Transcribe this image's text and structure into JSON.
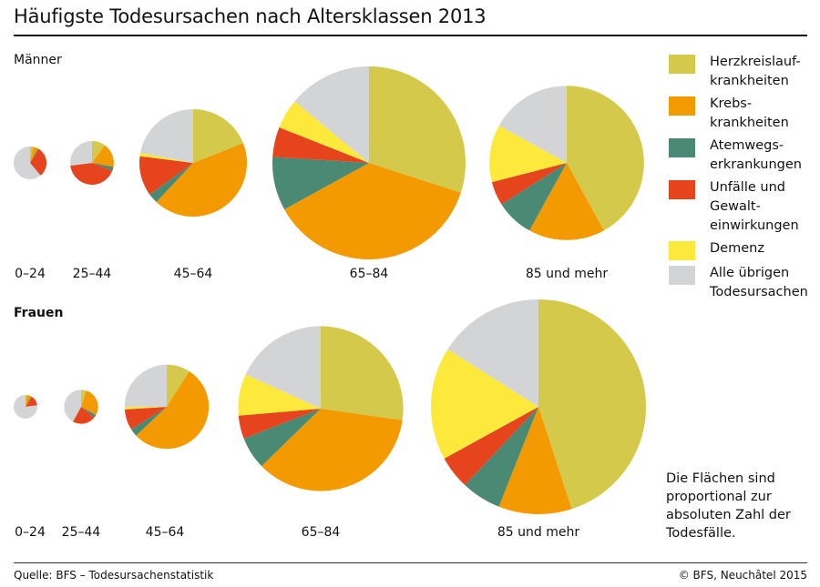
{
  "title": "Häufigste Todesursachen nach Altersklassen 2013",
  "note": "Die Flächen sind\nproportional zur\nabsoluten Zahl der\nTodesfälle.",
  "source": "Quelle: BFS – Todesursachenstatistik",
  "copyright": "© BFS, Neuchâtel 2015",
  "legend": [
    {
      "label": "Herzkreislauf-\nkrankheiten",
      "color": "#d4c94a"
    },
    {
      "label": "Krebs-\nkrankheiten",
      "color": "#f39a00"
    },
    {
      "label": "Atemwegs-\nerkrankungen",
      "color": "#4a8a74"
    },
    {
      "label": "Unfälle und\nGewalt-\neinwirkungen",
      "color": "#e5441c"
    },
    {
      "label": "Demenz",
      "color": "#fde93b"
    },
    {
      "label": "Alle übrigen\nTodesursachen",
      "color": "#d3d4d6"
    }
  ],
  "chart_data": {
    "type": "pie",
    "title": "Häufigste Todesursachen nach Altersklassen 2013",
    "note": "Pie areas proportional to absolute number of deaths; shares in percent (estimated), order matches legend",
    "categories": [
      "Herzkreislaufkrankheiten",
      "Krebskrankheiten",
      "Atemwegserkrankungen",
      "Unfälle und Gewalteinwirkungen",
      "Demenz",
      "Alle übrigen Todesursachen"
    ],
    "groups": [
      {
        "name": "Männer",
        "pies": [
          {
            "age": "0–24",
            "relative_size": 0.029,
            "values": [
              3,
              5,
              1,
              30,
              0,
              61
            ]
          },
          {
            "age": "25–44",
            "relative_size": 0.051,
            "values": [
              10,
              18,
              3,
              42,
              0,
              27
            ]
          },
          {
            "age": "45–64",
            "relative_size": 0.31,
            "values": [
              19,
              43,
              3,
              12,
              1,
              22
            ]
          },
          {
            "age": "65–84",
            "relative_size": 1.0,
            "values": [
              30,
              37,
              9,
              5,
              5,
              14
            ]
          },
          {
            "age": "85 und mehr",
            "relative_size": 0.64,
            "values": [
              42,
              16,
              8,
              5,
              12,
              17
            ]
          }
        ]
      },
      {
        "name": "Frauen",
        "pies": [
          {
            "age": "0–24",
            "relative_size": 0.015,
            "values": [
              2,
              6,
              1,
              14,
              0,
              77
            ]
          },
          {
            "age": "25–44",
            "relative_size": 0.031,
            "values": [
              5,
              28,
              3,
              22,
              0,
              42
            ]
          },
          {
            "age": "45–64",
            "relative_size": 0.19,
            "values": [
              9,
              54,
              3,
              8,
              1,
              25
            ]
          },
          {
            "age": "65–84",
            "relative_size": 0.73,
            "values": [
              30,
              39,
              7,
              5,
              9,
              20
            ]
          },
          {
            "age": "85 und mehr",
            "relative_size": 1.24,
            "values": [
              45,
              11,
              6,
              5,
              17,
              16
            ]
          }
        ]
      }
    ]
  }
}
